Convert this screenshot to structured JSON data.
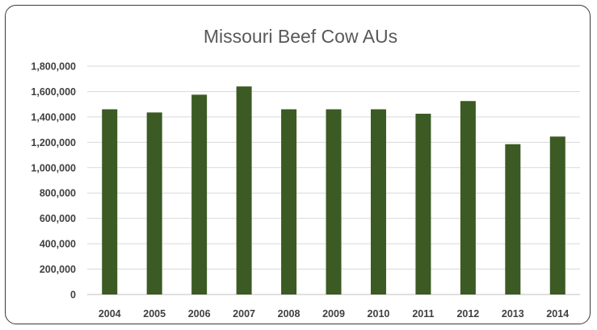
{
  "chart_data": {
    "type": "bar",
    "title": "Missouri Beef Cow AUs",
    "xlabel": "",
    "ylabel": "",
    "categories": [
      "2004",
      "2005",
      "2006",
      "2007",
      "2008",
      "2009",
      "2010",
      "2011",
      "2012",
      "2013",
      "2014"
    ],
    "values": [
      1460000,
      1435000,
      1575000,
      1640000,
      1460000,
      1460000,
      1460000,
      1425000,
      1525000,
      1185000,
      1245000
    ],
    "ylim": [
      0,
      1800000
    ],
    "yticks": [
      "0",
      "200,000",
      "400,000",
      "600,000",
      "800,000",
      "1,000,000",
      "1,200,000",
      "1,400,000",
      "1,600,000",
      "1,800,000"
    ],
    "grid": true,
    "legend": "none",
    "colors": {
      "bar": "#3b5a24",
      "grid": "#d9d9d9",
      "axis": "#bfbfbf"
    }
  }
}
